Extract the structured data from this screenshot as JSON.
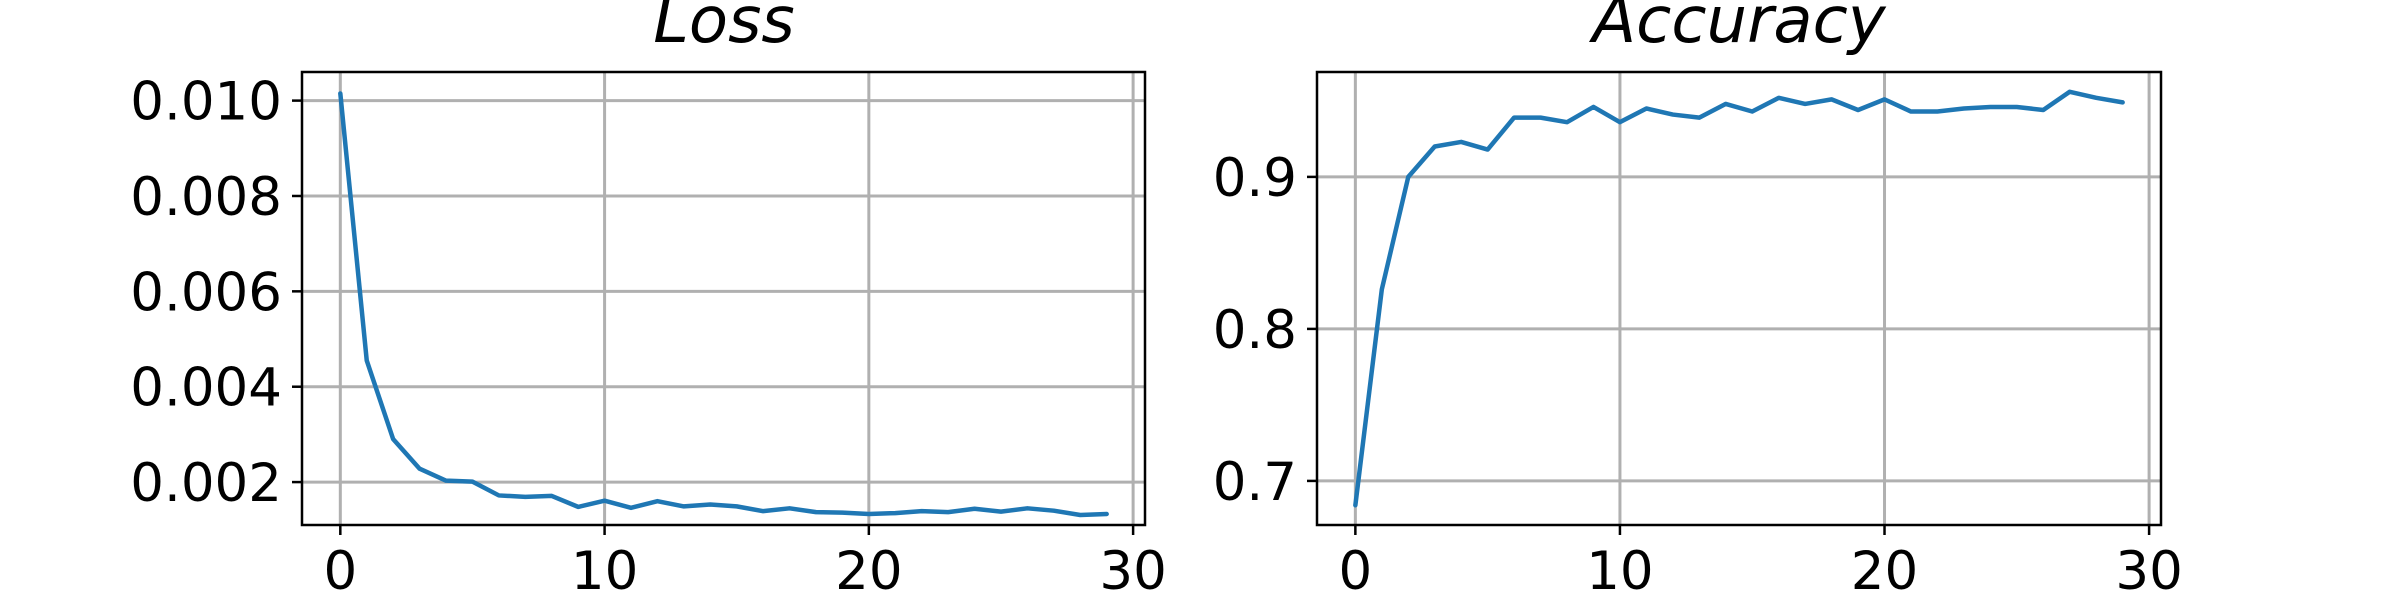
{
  "chart_data": [
    {
      "type": "line",
      "title": "Loss",
      "xlabel": "",
      "ylabel": "",
      "xlim": [
        -1.45,
        30.45
      ],
      "ylim": [
        0.0011,
        0.0106
      ],
      "xticks": [
        0,
        10,
        20,
        30
      ],
      "yticks": [
        0.002,
        0.004,
        0.006,
        0.008,
        0.01
      ],
      "ytick_labels": [
        "0.002",
        "0.004",
        "0.006",
        "0.008",
        "0.010"
      ],
      "grid": true,
      "series": [
        {
          "color": "#1f77b4",
          "x": [
            0,
            1,
            2,
            3,
            4,
            5,
            6,
            7,
            8,
            9,
            10,
            11,
            12,
            13,
            14,
            15,
            16,
            17,
            18,
            19,
            20,
            21,
            22,
            23,
            24,
            25,
            26,
            27,
            28,
            29
          ],
          "values": [
            0.01015,
            0.00455,
            0.0029,
            0.00228,
            0.00203,
            0.00201,
            0.00172,
            0.00169,
            0.00171,
            0.00148,
            0.00161,
            0.00146,
            0.0016,
            0.00149,
            0.00153,
            0.00149,
            0.00139,
            0.00145,
            0.00137,
            0.00136,
            0.00133,
            0.00135,
            0.00139,
            0.00137,
            0.00144,
            0.00138,
            0.00145,
            0.0014,
            0.00131,
            0.00133
          ]
        }
      ]
    },
    {
      "type": "line",
      "title": "Accuracy",
      "xlabel": "",
      "ylabel": "",
      "xlim": [
        -1.45,
        30.45
      ],
      "ylim": [
        0.671,
        0.969
      ],
      "xticks": [
        0,
        10,
        20,
        30
      ],
      "yticks": [
        0.7,
        0.8,
        0.9
      ],
      "ytick_labels": [
        "0.7",
        "0.8",
        "0.9"
      ],
      "grid": true,
      "series": [
        {
          "color": "#1f77b4",
          "x": [
            0,
            1,
            2,
            3,
            4,
            5,
            6,
            7,
            8,
            9,
            10,
            11,
            12,
            13,
            14,
            15,
            16,
            17,
            18,
            19,
            20,
            21,
            22,
            23,
            24,
            25,
            26,
            27,
            28,
            29
          ],
          "values": [
            0.684,
            0.826,
            0.9,
            0.92,
            0.923,
            0.918,
            0.939,
            0.939,
            0.936,
            0.946,
            0.936,
            0.945,
            0.941,
            0.939,
            0.948,
            0.943,
            0.952,
            0.948,
            0.951,
            0.944,
            0.951,
            0.943,
            0.943,
            0.945,
            0.946,
            0.946,
            0.944,
            0.956,
            0.952,
            0.949
          ]
        }
      ]
    }
  ]
}
